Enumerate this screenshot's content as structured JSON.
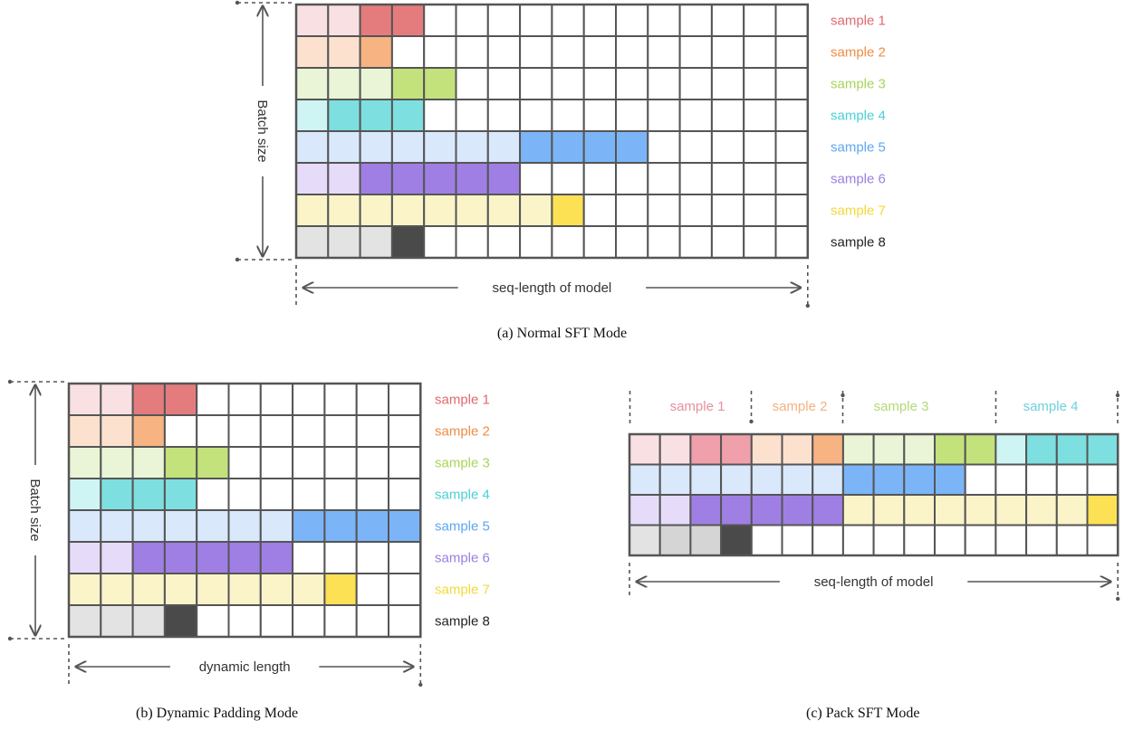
{
  "panels": {
    "a": {
      "caption": "(a) Normal SFT Mode",
      "rows_label": "Batch size",
      "length_label": "seq-length of model",
      "columns": 16,
      "rows": [
        {
          "label": "sample 1",
          "light": 2,
          "dark": 2,
          "light_color": "#f9e0e3",
          "dark_color": "#e47c7e",
          "label_color": "#e06a6e"
        },
        {
          "label": "sample 2",
          "light": 2,
          "dark": 1,
          "light_color": "#fde1cf",
          "dark_color": "#f7b382",
          "label_color": "#ef8c45"
        },
        {
          "label": "sample 3",
          "light": 3,
          "dark": 2,
          "light_color": "#e9f5d6",
          "dark_color": "#c3e27c",
          "label_color": "#a9d45a"
        },
        {
          "label": "sample 4",
          "light": 1,
          "dark": 3,
          "light_color": "#cff4f4",
          "dark_color": "#7edfe0",
          "label_color": "#4cd0d6"
        },
        {
          "label": "sample 5",
          "light": 7,
          "dark": 4,
          "light_color": "#d9e8fb",
          "dark_color": "#7bb5f7",
          "label_color": "#5ea6f0"
        },
        {
          "label": "sample 6",
          "light": 2,
          "dark": 5,
          "light_color": "#e6dcfa",
          "dark_color": "#9f7fe4",
          "label_color": "#9b7ee3"
        },
        {
          "label": "sample 7",
          "light": 8,
          "dark": 1,
          "light_color": "#fbf4c9",
          "dark_color": "#fce154",
          "label_color": "#f3d83a"
        },
        {
          "label": "sample 8",
          "light": 3,
          "dark": 1,
          "light_color": "#e3e3e3",
          "dark_color": "#4a4a4a",
          "label_color": "#222222"
        }
      ]
    },
    "b": {
      "caption": "(b) Dynamic Padding Mode",
      "rows_label": "Batch size",
      "length_label": "dynamic length",
      "columns": 11,
      "rows": [
        {
          "label": "sample 1",
          "light": 2,
          "dark": 2,
          "light_color": "#f9e0e3",
          "dark_color": "#e47c7e",
          "label_color": "#e06a6e"
        },
        {
          "label": "sample 2",
          "light": 2,
          "dark": 1,
          "light_color": "#fde1cf",
          "dark_color": "#f7b382",
          "label_color": "#ef8c45"
        },
        {
          "label": "sample 3",
          "light": 3,
          "dark": 2,
          "light_color": "#e9f5d6",
          "dark_color": "#c3e27c",
          "label_color": "#a9d45a"
        },
        {
          "label": "sample 4",
          "light": 1,
          "dark": 3,
          "light_color": "#cff4f4",
          "dark_color": "#7edfe0",
          "label_color": "#4cd0d6"
        },
        {
          "label": "sample 5",
          "light": 7,
          "dark": 4,
          "light_color": "#d9e8fb",
          "dark_color": "#7bb5f7",
          "label_color": "#5ea6f0"
        },
        {
          "label": "sample 6",
          "light": 2,
          "dark": 5,
          "light_color": "#e6dcfa",
          "dark_color": "#9f7fe4",
          "label_color": "#9b7ee3"
        },
        {
          "label": "sample 7",
          "light": 8,
          "dark": 1,
          "light_color": "#fbf4c9",
          "dark_color": "#fce154",
          "label_color": "#f3d83a"
        },
        {
          "label": "sample 8",
          "light": 3,
          "dark": 1,
          "light_color": "#e3e3e3",
          "dark_color": "#4a4a4a",
          "label_color": "#222222"
        }
      ]
    },
    "c": {
      "caption": "(c) Pack SFT Mode",
      "length_label": "seq-length of model",
      "columns": 16,
      "headers": [
        {
          "label": "sample 1",
          "color": "#e7909e"
        },
        {
          "label": "sample 2",
          "color": "#f2b283"
        },
        {
          "label": "sample 3",
          "color": "#b4d978"
        },
        {
          "label": "sample 4",
          "color": "#6ed1dc"
        }
      ],
      "rows": [
        [
          "#f9e0e3",
          "#f9e0e3",
          "#f0a0aa",
          "#f0a0aa",
          "#fde1cf",
          "#fde1cf",
          "#f7b382",
          "#e9f5d6",
          "#e9f5d6",
          "#e9f5d6",
          "#c3e27c",
          "#c3e27c",
          "#cff4f4",
          "#7edfe0",
          "#7edfe0",
          "#7edfe0"
        ],
        [
          "#d9e8fb",
          "#d9e8fb",
          "#d9e8fb",
          "#d9e8fb",
          "#d9e8fb",
          "#d9e8fb",
          "#d9e8fb",
          "#7bb5f7",
          "#7bb5f7",
          "#7bb5f7",
          "#7bb5f7",
          "#ffffff",
          "#ffffff",
          "#ffffff",
          "#ffffff",
          "#ffffff"
        ],
        [
          "#e6dcfa",
          "#e6dcfa",
          "#9f7fe4",
          "#9f7fe4",
          "#9f7fe4",
          "#9f7fe4",
          "#9f7fe4",
          "#fbf4c9",
          "#fbf4c9",
          "#fbf4c9",
          "#fbf4c9",
          "#fbf4c9",
          "#fbf4c9",
          "#fbf4c9",
          "#fbf4c9",
          "#fce154"
        ],
        [
          "#e3e3e3",
          "#d5d5d5",
          "#d5d5d5",
          "#4a4a4a",
          "#ffffff",
          "#ffffff",
          "#ffffff",
          "#ffffff",
          "#ffffff",
          "#ffffff",
          "#ffffff",
          "#ffffff",
          "#ffffff",
          "#ffffff",
          "#ffffff",
          "#ffffff"
        ]
      ]
    }
  },
  "colors": {
    "grid_line": "#555555",
    "empty_cell": "#ffffff",
    "arrow": "#555555",
    "dashed": "#555555"
  }
}
